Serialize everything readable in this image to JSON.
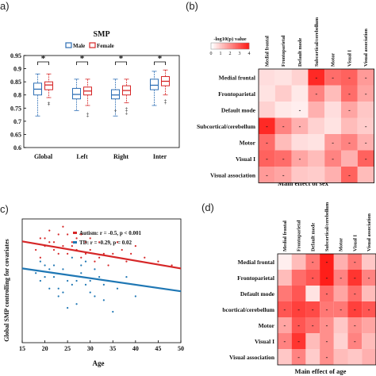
{
  "figure": {
    "panel_labels": [
      "a)",
      "(b)",
      "c)",
      "(d)"
    ]
  },
  "chart_data": [
    {
      "panel": "a)",
      "type": "box",
      "title": "SMP",
      "categories": [
        "Global",
        "Left",
        "Right",
        "Inter"
      ],
      "ylim": [
        0.6,
        0.95
      ],
      "yticks": [
        "0.6",
        "0.65",
        "0.7",
        "0.75",
        "0.8",
        "0.85",
        "0.9",
        "0.95"
      ],
      "significance": [
        "*",
        "*",
        "*",
        "*"
      ],
      "colors": {
        "Male": "#2e6fb5",
        "Female": "#d62728"
      },
      "series": [
        {
          "name": "Male",
          "boxes": [
            {
              "min": 0.72,
              "q1": 0.8,
              "median": 0.822,
              "q3": 0.845,
              "max": 0.88,
              "outliers": []
            },
            {
              "min": 0.74,
              "q1": 0.785,
              "median": 0.802,
              "q3": 0.825,
              "max": 0.86,
              "outliers": []
            },
            {
              "min": 0.72,
              "q1": 0.785,
              "median": 0.8,
              "q3": 0.82,
              "max": 0.86,
              "outliers": [
                0.74
              ]
            },
            {
              "min": 0.76,
              "q1": 0.82,
              "median": 0.837,
              "q3": 0.86,
              "max": 0.89,
              "outliers": []
            }
          ]
        },
        {
          "name": "Female",
          "boxes": [
            {
              "min": 0.79,
              "q1": 0.82,
              "median": 0.838,
              "q3": 0.85,
              "max": 0.88,
              "outliers": [
                0.77,
                0.765
              ]
            },
            {
              "min": 0.76,
              "q1": 0.8,
              "median": 0.815,
              "q3": 0.83,
              "max": 0.86,
              "outliers": [
                0.73,
                0.72
              ]
            },
            {
              "min": 0.77,
              "q1": 0.8,
              "median": 0.817,
              "q3": 0.835,
              "max": 0.86,
              "outliers": [
                0.75,
                0.74,
                0.73
              ]
            },
            {
              "min": 0.8,
              "q1": 0.835,
              "median": 0.852,
              "q3": 0.87,
              "max": 0.895,
              "outliers": [
                0.78,
                0.77
              ]
            }
          ]
        }
      ]
    },
    {
      "panel": "(b)",
      "type": "heatmap",
      "xlabel": "Main effect of sex",
      "colorbar": {
        "title": "-log10(p) value",
        "ticks": [
          "0",
          "1",
          "2",
          "3",
          "4"
        ],
        "range": [
          0,
          4
        ]
      },
      "rows": [
        "Medial frontal",
        "Frontoparietal",
        "Default mode",
        "Subcortical/cerebellum",
        "Motor",
        "Visual I",
        "Visual association"
      ],
      "cols": [
        "Medial frontal",
        "Frontoparietal",
        "Default mode",
        "Subcortical/cerebellum",
        "Motor",
        "Visual I",
        "Visual association"
      ],
      "values": [
        [
          0.6,
          0.5,
          0.8,
          3.8,
          2.6,
          2.8,
          1.8
        ],
        [
          0.5,
          0.9,
          0.4,
          2.2,
          1.2,
          2.6,
          1.6
        ],
        [
          0.8,
          0.4,
          0.3,
          1.4,
          0.6,
          1.6,
          1.0
        ],
        [
          3.8,
          2.2,
          1.4,
          0.8,
          0.5,
          1.2,
          0.9
        ],
        [
          2.6,
          1.2,
          0.6,
          0.5,
          1.8,
          2.2,
          1.4
        ],
        [
          2.8,
          2.6,
          1.6,
          1.2,
          2.2,
          1.4,
          2.8
        ],
        [
          1.8,
          1.6,
          1.0,
          0.9,
          1.4,
          2.8,
          1.2
        ]
      ],
      "marked": [
        [
          0,
          3
        ],
        [
          0,
          4
        ],
        [
          0,
          5
        ],
        [
          0,
          6
        ],
        [
          1,
          3
        ],
        [
          1,
          5
        ],
        [
          1,
          6
        ],
        [
          2,
          2
        ],
        [
          2,
          5
        ],
        [
          3,
          0
        ],
        [
          3,
          1
        ],
        [
          3,
          2
        ],
        [
          3,
          6
        ],
        [
          4,
          0
        ],
        [
          4,
          4
        ],
        [
          4,
          5
        ],
        [
          4,
          6
        ],
        [
          5,
          0
        ],
        [
          5,
          1
        ],
        [
          5,
          2
        ],
        [
          5,
          4
        ],
        [
          5,
          6
        ],
        [
          6,
          0
        ],
        [
          6,
          1
        ],
        [
          6,
          5
        ]
      ],
      "marker": "-"
    },
    {
      "panel": "c)",
      "type": "scatter",
      "xlabel": "Age",
      "ylabel": "Global SMP controlling for covariates",
      "xlim": [
        15,
        50
      ],
      "xticks": [
        "15",
        "20",
        "25",
        "30",
        "35",
        "40",
        "45",
        "50"
      ],
      "ylim": [
        0.6,
        0.92
      ],
      "series": [
        {
          "name": "Autism: r = -0.5, p < 0.001",
          "color": "#d62728",
          "fit": [
            [
              15,
              0.862
            ],
            [
              50,
              0.792
            ]
          ],
          "points": [
            [
              18,
              0.84
            ],
            [
              19,
              0.87
            ],
            [
              20,
              0.85
            ],
            [
              21,
              0.89
            ],
            [
              22,
              0.86
            ],
            [
              23,
              0.83
            ],
            [
              24,
              0.9
            ],
            [
              25,
              0.88
            ],
            [
              26,
              0.85
            ],
            [
              27,
              0.87
            ],
            [
              28,
              0.82
            ],
            [
              29,
              0.86
            ],
            [
              30,
              0.84
            ],
            [
              31,
              0.81
            ],
            [
              32,
              0.86
            ],
            [
              33,
              0.83
            ],
            [
              34,
              0.8
            ],
            [
              35,
              0.83
            ],
            [
              36,
              0.86
            ],
            [
              37,
              0.84
            ],
            [
              38,
              0.81
            ],
            [
              39,
              0.83
            ],
            [
              40,
              0.85
            ],
            [
              42,
              0.82
            ],
            [
              45,
              0.81
            ],
            [
              48,
              0.8
            ],
            [
              19,
              0.82
            ],
            [
              21,
              0.86
            ],
            [
              23,
              0.88
            ],
            [
              25,
              0.83
            ],
            [
              27,
              0.84
            ],
            [
              29,
              0.83
            ],
            [
              20,
              0.87
            ],
            [
              22,
              0.84
            ],
            [
              24,
              0.85
            ],
            [
              26,
              0.86
            ],
            [
              28,
              0.88
            ],
            [
              30,
              0.87
            ],
            [
              32,
              0.82
            ]
          ]
        },
        {
          "name": "TD: r = -0.29, p = 0.02",
          "color": "#1f77b4",
          "fit": [
            [
              15,
              0.792
            ],
            [
              50,
              0.733
            ]
          ],
          "points": [
            [
              18,
              0.78
            ],
            [
              19,
              0.81
            ],
            [
              20,
              0.77
            ],
            [
              21,
              0.74
            ],
            [
              22,
              0.8
            ],
            [
              23,
              0.72
            ],
            [
              24,
              0.79
            ],
            [
              25,
              0.76
            ],
            [
              26,
              0.82
            ],
            [
              27,
              0.7
            ],
            [
              28,
              0.78
            ],
            [
              29,
              0.75
            ],
            [
              30,
              0.73
            ],
            [
              31,
              0.79
            ],
            [
              32,
              0.77
            ],
            [
              33,
              0.71
            ],
            [
              34,
              0.76
            ],
            [
              35,
              0.68
            ],
            [
              36,
              0.74
            ],
            [
              38,
              0.77
            ],
            [
              40,
              0.72
            ],
            [
              19,
              0.76
            ],
            [
              21,
              0.79
            ],
            [
              23,
              0.74
            ],
            [
              25,
              0.69
            ],
            [
              27,
              0.76
            ],
            [
              29,
              0.81
            ],
            [
              31,
              0.72
            ],
            [
              22,
              0.77
            ],
            [
              24,
              0.73
            ],
            [
              26,
              0.75
            ],
            [
              28,
              0.8
            ],
            [
              30,
              0.76
            ],
            [
              20,
              0.8
            ],
            [
              33,
              0.75
            ]
          ]
        }
      ]
    },
    {
      "panel": "(d)",
      "type": "heatmap",
      "xlabel": "Main effect of age",
      "rows": [
        "Medial frontal",
        "Frontoparietal",
        "Default mode",
        "bcortical/cerebellum",
        "Motor",
        "Visual I",
        "Visual association"
      ],
      "cols": [
        "Medial frontal",
        "Frontoparietal",
        "Default mode",
        "Subcortical/cerebellum",
        "Motor",
        "Visual I",
        "Visual association"
      ],
      "values": [
        [
          0.3,
          1.2,
          2.4,
          4.0,
          1.4,
          2.4,
          1.0
        ],
        [
          1.2,
          2.6,
          3.0,
          4.0,
          2.2,
          3.6,
          2.2
        ],
        [
          2.4,
          3.0,
          0.5,
          2.6,
          1.6,
          2.6,
          1.2
        ],
        [
          3.0,
          3.4,
          3.2,
          2.4,
          2.4,
          3.4,
          3.0
        ],
        [
          1.6,
          3.0,
          2.6,
          2.0,
          1.0,
          2.0,
          1.6
        ],
        [
          2.2,
          3.6,
          1.2,
          2.0,
          0.8,
          2.2,
          1.2
        ],
        [
          1.0,
          2.2,
          0.9,
          2.0,
          1.2,
          1.0,
          1.4
        ]
      ],
      "marked": [
        [
          0,
          2
        ],
        [
          0,
          3
        ],
        [
          0,
          5
        ],
        [
          1,
          2
        ],
        [
          1,
          3
        ],
        [
          1,
          4
        ],
        [
          1,
          5
        ],
        [
          1,
          6
        ],
        [
          2,
          3
        ],
        [
          2,
          5
        ],
        [
          3,
          0
        ],
        [
          3,
          1
        ],
        [
          3,
          2
        ],
        [
          3,
          3
        ],
        [
          3,
          4
        ],
        [
          3,
          5
        ],
        [
          3,
          6
        ],
        [
          4,
          0
        ],
        [
          4,
          1
        ],
        [
          4,
          2
        ],
        [
          4,
          3
        ],
        [
          4,
          5
        ],
        [
          5,
          0
        ],
        [
          5,
          1
        ],
        [
          5,
          3
        ],
        [
          5,
          5
        ],
        [
          6,
          1
        ],
        [
          6,
          3
        ]
      ],
      "marker": "-"
    }
  ]
}
